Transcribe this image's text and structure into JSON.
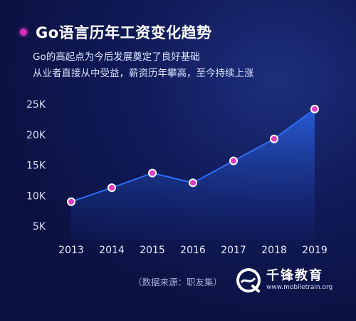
{
  "header": {
    "title": "Go语言历年工资变化趋势",
    "subtitle_line1": "Go的高起点为今后发展奠定了良好基础",
    "subtitle_line2": "从业者直接从中受益，薪资历年攀高，至今持续上涨"
  },
  "source_note": "（数据来源：职友集）",
  "brand": {
    "name": "千锋教育",
    "url": "www.mobiletrain.org"
  },
  "colors": {
    "background": "#0b1140",
    "line": "#2f6df2",
    "point_fill": "#e03cc3",
    "point_stroke": "#ffffff",
    "accent": "#d42fb9"
  },
  "chart_data": {
    "type": "area",
    "x": [
      "2013",
      "2014",
      "2015",
      "2016",
      "2017",
      "2018",
      "2019"
    ],
    "values": [
      9000,
      11300,
      13700,
      12100,
      15700,
      19300,
      24200
    ],
    "ylim": [
      5000,
      25000
    ],
    "yticks": [
      5000,
      10000,
      15000,
      20000,
      25000
    ],
    "ytick_labels": [
      "5K",
      "10K",
      "15K",
      "20K",
      "25K"
    ],
    "grid": false,
    "legend": "none"
  }
}
